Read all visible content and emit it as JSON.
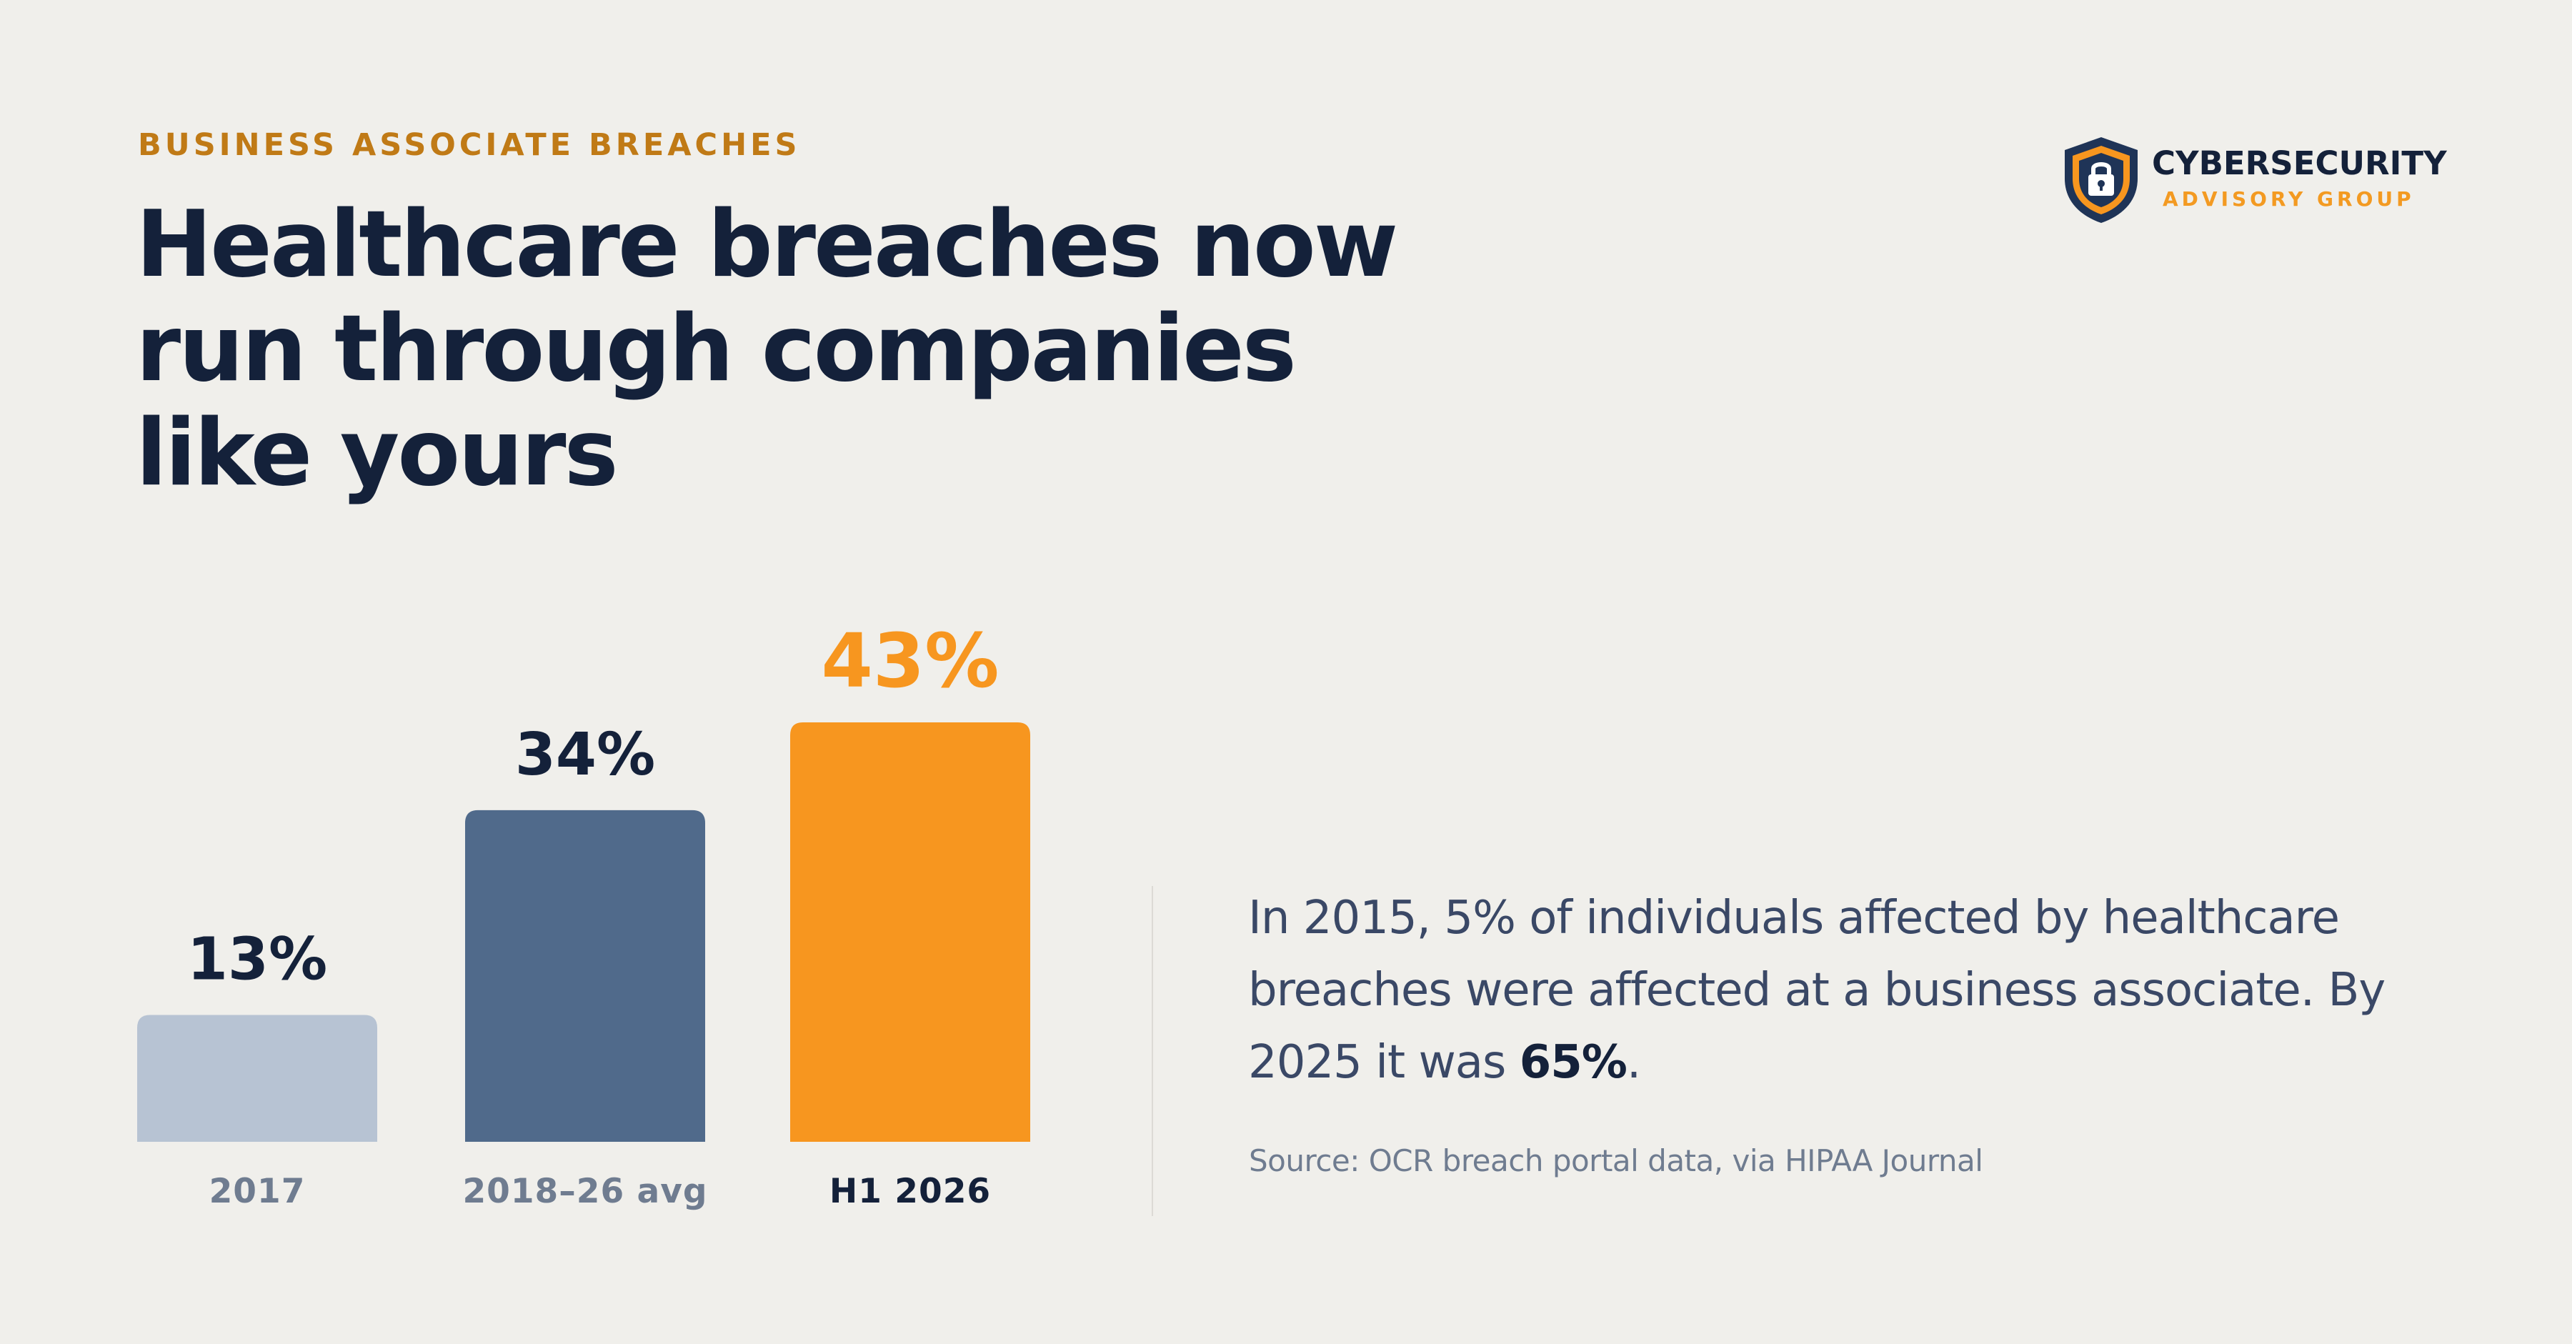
{
  "eyebrow": "BUSINESS ASSOCIATE BREACHES",
  "headline": {
    "line1": "Healthcare breaches now",
    "line2": "run through companies",
    "line3": "like yours"
  },
  "logo": {
    "name": "CYBERSECURITY",
    "sub": "ADVISORY GROUP",
    "icon": "lock-shield-icon"
  },
  "body": {
    "text_before": "In 2015, 5% of individuals affected by healthcare breaches were affected at a business associate. By 2025 it was ",
    "highlight": "65%",
    "text_after": "."
  },
  "source": "Source: OCR breach portal data, via HIPAA Journal",
  "colors": {
    "background": "#F0EFEB",
    "navy": "#14213A",
    "accent_orange": "#F7961F",
    "eyebrow_orange": "#C07A16",
    "bar_2017": "#B7C3D3",
    "bar_avg": "#506A8B",
    "bar_h1_2026": "#F7961F"
  },
  "chart_data": {
    "type": "bar",
    "categories": [
      "2017",
      "2018–26 avg",
      "H1 2026"
    ],
    "values": [
      13,
      34,
      43
    ],
    "value_labels": [
      "13%",
      "34%",
      "43%"
    ],
    "bar_colors": [
      "#B7C3D3",
      "#506A8B",
      "#F7961F"
    ],
    "value_label_colors": [
      "#14213A",
      "#14213A",
      "#F7961F"
    ],
    "category_label_colors": [
      "#6F7C90",
      "#6F7C90",
      "#14213A"
    ],
    "unit": "%",
    "ylim": [
      0,
      43
    ],
    "grid": false,
    "title": "",
    "xlabel": "",
    "ylabel": ""
  }
}
